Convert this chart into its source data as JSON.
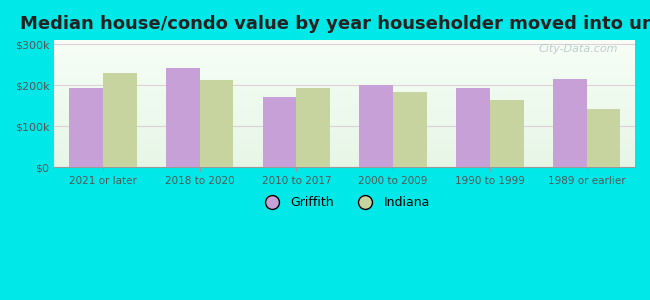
{
  "title": "Median house/condo value by year householder moved into unit",
  "categories": [
    "2021 or later",
    "2018 to 2020",
    "2010 to 2017",
    "2000 to 2009",
    "1990 to 1999",
    "1989 or earlier"
  ],
  "griffith_values": [
    193000,
    243000,
    172000,
    200000,
    192000,
    216000
  ],
  "indiana_values": [
    230000,
    213000,
    193000,
    183000,
    163000,
    143000
  ],
  "griffith_color": "#c8a0d8",
  "indiana_color": "#c8d4a0",
  "background_color": "#00e8e8",
  "plot_bg_top": "#f5fff5",
  "plot_bg_bottom": "#e8f8e8",
  "ylim": [
    0,
    310000
  ],
  "yticks": [
    0,
    100000,
    200000,
    300000
  ],
  "ytick_labels": [
    "$0",
    "$100k",
    "$200k",
    "$300k"
  ],
  "legend_labels": [
    "Griffith",
    "Indiana"
  ],
  "title_fontsize": 13,
  "grid_color": "#e0d0d8",
  "watermark": "City-Data.com"
}
